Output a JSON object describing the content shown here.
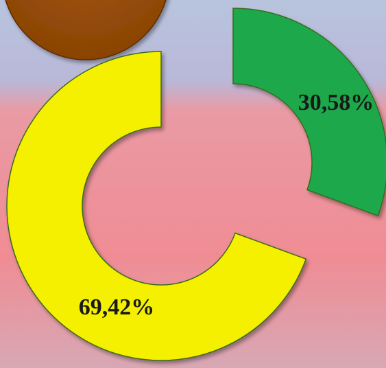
{
  "chart_data": {
    "type": "donut",
    "values": [
      30.58,
      69.42
    ],
    "value_labels": [
      "30,58%",
      "69,42%"
    ],
    "colors": [
      "#1aa84c",
      "#f4f000"
    ]
  }
}
